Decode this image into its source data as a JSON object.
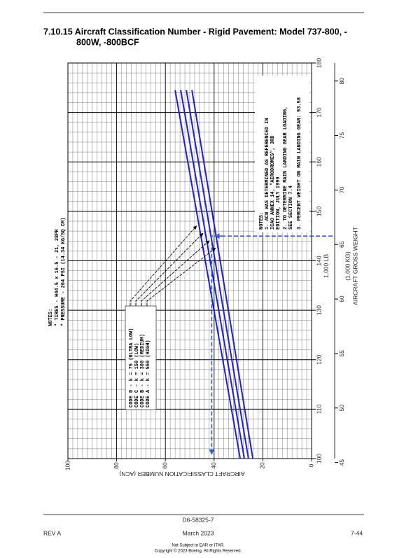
{
  "page": {
    "title_lines": [
      "7.10.15 Aircraft Classification Number - Rigid Pavement: Model 737-800, -",
      "800W, -800BCF"
    ],
    "doc_number": "D6-58325-7",
    "revision": "REV A",
    "date": "March 2023",
    "page_number": "7-44",
    "footer_lines": [
      "Not Subject to EAR or ITAR.",
      "Copyright © 2023 Boeing. All Rights Reserved."
    ]
  },
  "chart_data": {
    "type": "line",
    "x_label": "AIRCRAFT GROSS WEIGHT",
    "x_unit": "1,000 LB",
    "x2_unit": "(1,000 KG)",
    "y_label": "AIRCRAFT CLASSIFICATION NUMBER (ACN)",
    "xlim": [
      100,
      180
    ],
    "xticks": [
      100,
      110,
      120,
      130,
      140,
      150,
      160,
      170,
      180
    ],
    "x2lim": [
      45.36,
      81.65
    ],
    "x2ticks": [
      45,
      50,
      55,
      60,
      65,
      70,
      75,
      80
    ],
    "ylim": [
      0,
      100
    ],
    "yticks": [
      0,
      20,
      40,
      60,
      80,
      100
    ],
    "grid": true,
    "series": [
      {
        "name": "CODE D - k = 75 (ULTRA LOW)",
        "color": "#1c1cf0",
        "x": [
          100,
          174.5
        ],
        "values": [
          29.3,
          56
        ]
      },
      {
        "name": "CODE C - k = 150 (LOW)",
        "color": "#1c1cf0",
        "x": [
          100,
          174.5
        ],
        "values": [
          27.6,
          53.7
        ]
      },
      {
        "name": "CODE B - k = 300 (MEDIUM)",
        "color": "#1c1cf0",
        "x": [
          100,
          174.5
        ],
        "values": [
          25.9,
          51.4
        ]
      },
      {
        "name": "CODE A - k = 550 (HIGH)",
        "color": "#1c1cf0",
        "x": [
          100,
          174.5
        ],
        "values": [
          24.1,
          49.1
        ]
      }
    ],
    "example": {
      "x": 145,
      "value": 41,
      "color": "#3a5bd8"
    },
    "tire_notes": [
      "NOTES:",
      "* TIRES - H44.5 x 16.5 - 21, 28PR",
      "* PRESSURE - 204 PSI (14.34 KG/SQ CM)"
    ],
    "notes": [
      "NOTES:",
      "1. ACN WAS DETERMINED AS REFERENCED IN",
      "ICAO ANNEX 14, \"AERODROMES\", 3RD",
      "EDITION, JULY 1999",
      "2. TO DETERMINE MAIN LANDING GEAR LOADING,",
      "SEE SECTION 7.4",
      "3. PERCENT WEIGHT ON MAIN LANDING GEAR: 93.58"
    ]
  }
}
